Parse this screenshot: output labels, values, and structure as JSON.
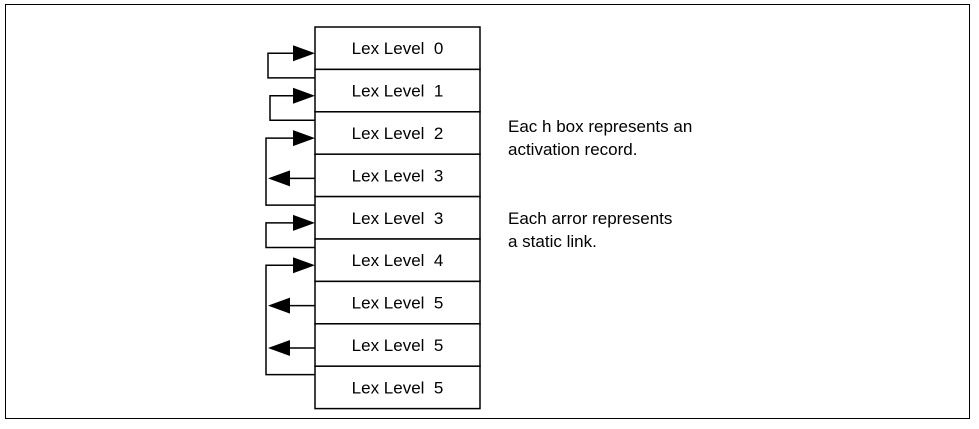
{
  "colors": {
    "stroke": "#000000",
    "background": "#ffffff",
    "text": "#000000"
  },
  "records": [
    {
      "label": "Lex Level  0"
    },
    {
      "label": "Lex Level  1"
    },
    {
      "label": "Lex Level  2"
    },
    {
      "label": "Lex Level  3"
    },
    {
      "label": "Lex Level  3"
    },
    {
      "label": "Lex Level  4"
    },
    {
      "label": "Lex Level  5"
    },
    {
      "label": "Lex Level  5"
    },
    {
      "label": "Lex Level  5"
    }
  ],
  "static_links": [
    {
      "from_record": 1,
      "to_record": 0
    },
    {
      "from_record": 2,
      "to_record": 1
    },
    {
      "from_record": 3,
      "to_record": 3
    },
    {
      "from_record": 4,
      "to_record": 2
    },
    {
      "from_record": 5,
      "to_record": 4
    },
    {
      "from_record": 6,
      "to_record": 6
    },
    {
      "from_record": 7,
      "to_record": 7
    },
    {
      "from_record": 8,
      "to_record": 5
    }
  ],
  "notes": {
    "box_note": {
      "line1": "Eac h box represents an",
      "line2": "activation record."
    },
    "arrow_note": {
      "line1": "Each arror represents",
      "line2": "a static link."
    }
  }
}
